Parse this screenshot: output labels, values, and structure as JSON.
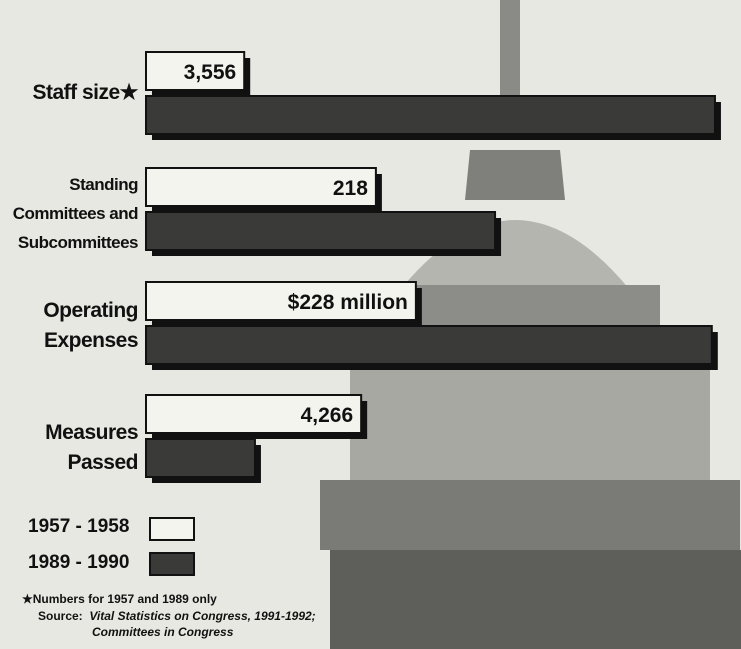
{
  "chart_data": {
    "type": "bar",
    "orientation": "horizontal",
    "categories": [
      "Staff size★",
      "Standing Committees and Subcommittees",
      "Operating Expenses",
      "Measures Passed"
    ],
    "series": [
      {
        "name": "1957 - 1958",
        "color": "#f4f4ef",
        "values": [
          3556,
          218,
          228,
          4266
        ],
        "value_labels": [
          "3,556",
          "218",
          "$228 million",
          "4,266"
        ]
      },
      {
        "name": "1989 - 1990",
        "color": "#3a3a38",
        "values": [
          20600,
          331,
          478,
          2160
        ]
      }
    ],
    "xlims": [
      [
        0,
        21000
      ],
      [
        0,
        550
      ],
      [
        0,
        490
      ],
      [
        0,
        11500
      ]
    ],
    "footnote": "★Numbers for 1957 and 1989 only",
    "source_label": "Source:",
    "source_line1": "Vital Statistics on Congress, 1991-1992;",
    "source_line2": "Committees in Congress"
  }
}
